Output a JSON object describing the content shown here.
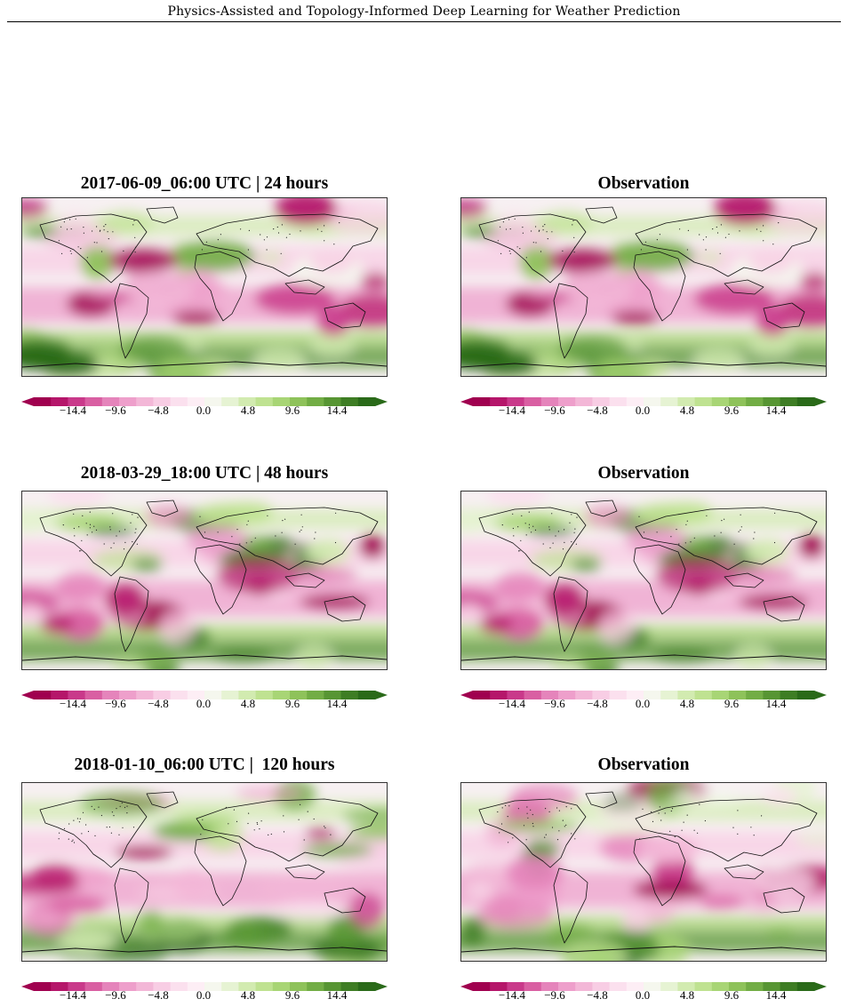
{
  "header": {
    "running_title": "Physics-Assisted and Topology-Informed Deep Learning for Weather Prediction"
  },
  "colormap": {
    "name": "PiYG",
    "colors": [
      "#a0004f",
      "#b5166a",
      "#c9398a",
      "#d95fa2",
      "#e584bb",
      "#ee9fcb",
      "#f3b7d7",
      "#f8cde4",
      "#fbe0ee",
      "#fdeef5",
      "#f5f7ee",
      "#e6f3d3",
      "#d2ebb0",
      "#bfe291",
      "#a8d575",
      "#8ec25a",
      "#72ad45",
      "#579533",
      "#3e7d24",
      "#2a6a19"
    ]
  },
  "colorbar_ticks": [
    "−14.4",
    "−9.6",
    "−4.8",
    "0.0",
    "4.8",
    "9.6",
    "14.4"
  ],
  "panels": [
    {
      "title": "2017-06-09_06:00 UTC | 24 hours",
      "kind": "prediction",
      "seed": 11
    },
    {
      "title": "Observation",
      "kind": "observation",
      "seed": 11
    },
    {
      "title": "2018-03-29_18:00 UTC | 48 hours",
      "kind": "prediction",
      "seed": 23
    },
    {
      "title": "Observation",
      "kind": "observation",
      "seed": 23
    },
    {
      "title": "2018-01-10_06:00 UTC |  120 hours",
      "kind": "prediction",
      "seed": 37
    },
    {
      "title": "Observation",
      "kind": "observation",
      "seed": 41
    }
  ]
}
